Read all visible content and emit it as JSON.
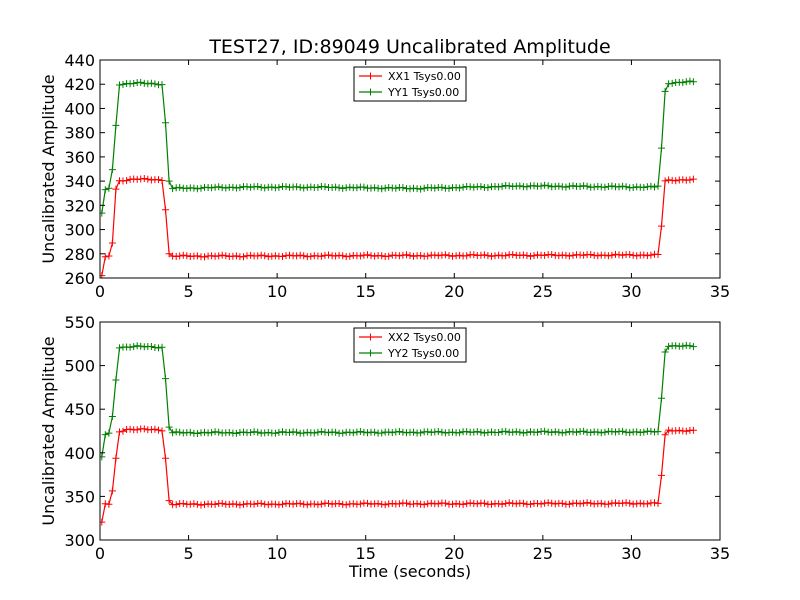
{
  "figure": {
    "title": "TEST27, ID:89049 Uncalibrated Amplitude",
    "xlabel": "Time (seconds)"
  },
  "chart_data": [
    {
      "type": "line",
      "title": "TEST27, ID:89049 Uncalibrated Amplitude",
      "xlabel": "",
      "ylabel": "Uncalibrated Amplitude",
      "xlim": [
        0,
        35
      ],
      "ylim": [
        260,
        440
      ],
      "xticks": [
        "0",
        "5",
        "10",
        "15",
        "20",
        "25",
        "30",
        "35"
      ],
      "yticks": [
        "260",
        "280",
        "300",
        "320",
        "340",
        "360",
        "380",
        "400",
        "420",
        "440"
      ],
      "grid": false,
      "legend_position": "top-center",
      "series": [
        {
          "name": "XX1 Tsys0.00",
          "color": "#ff0000",
          "marker": "+",
          "sampling": {
            "start": 0.1,
            "step": 0.2,
            "end": 33.5
          },
          "profile": [
            [
              0.1,
              262
            ],
            [
              0.3,
              277
            ],
            [
              0.5,
              278
            ],
            [
              0.7,
              289
            ],
            [
              0.9,
              333
            ],
            [
              1.1,
              340
            ],
            [
              1.5,
              341
            ],
            [
              2.0,
              342
            ],
            [
              3.0,
              341
            ],
            [
              3.6,
              341
            ],
            [
              3.7,
              317
            ],
            [
              3.9,
              280
            ],
            [
              4.1,
              278
            ],
            [
              31.3,
              279
            ],
            [
              31.5,
              279
            ],
            [
              31.7,
              303
            ],
            [
              31.9,
              340
            ],
            [
              32.2,
              341
            ],
            [
              33.5,
              341
            ]
          ]
        },
        {
          "name": "YY1 Tsys0.00",
          "color": "#008000",
          "marker": "+",
          "sampling": {
            "start": 0.1,
            "step": 0.2,
            "end": 33.5
          },
          "profile": [
            [
              0.1,
              313
            ],
            [
              0.3,
              333
            ],
            [
              0.5,
              334
            ],
            [
              0.7,
              349
            ],
            [
              0.9,
              386
            ],
            [
              1.1,
              420
            ],
            [
              2.0,
              421
            ],
            [
              3.6,
              420
            ],
            [
              3.7,
              388
            ],
            [
              3.9,
              340
            ],
            [
              4.1,
              334
            ],
            [
              8.0,
              335
            ],
            [
              12.0,
              335
            ],
            [
              18.0,
              334
            ],
            [
              24.0,
              336
            ],
            [
              31.3,
              335
            ],
            [
              31.5,
              336
            ],
            [
              31.7,
              367
            ],
            [
              31.9,
              414
            ],
            [
              32.1,
              421
            ],
            [
              33.5,
              422
            ]
          ]
        }
      ]
    },
    {
      "type": "line",
      "title": "",
      "xlabel": "Time (seconds)",
      "ylabel": "Uncalibrated Amplitude",
      "xlim": [
        0,
        35
      ],
      "ylim": [
        300,
        550
      ],
      "xticks": [
        "0",
        "5",
        "10",
        "15",
        "20",
        "25",
        "30",
        "35"
      ],
      "yticks": [
        "300",
        "350",
        "400",
        "450",
        "500",
        "550"
      ],
      "grid": false,
      "legend_position": "top-center",
      "series": [
        {
          "name": "XX2 Tsys0.00",
          "color": "#ff0000",
          "marker": "+",
          "sampling": {
            "start": 0.1,
            "step": 0.2,
            "end": 33.5
          },
          "profile": [
            [
              0.1,
              320
            ],
            [
              0.3,
              341
            ],
            [
              0.5,
              341
            ],
            [
              0.7,
              356
            ],
            [
              0.9,
              393
            ],
            [
              1.1,
              424
            ],
            [
              1.5,
              427
            ],
            [
              2.0,
              427
            ],
            [
              3.6,
              426
            ],
            [
              3.7,
              394
            ],
            [
              3.9,
              345
            ],
            [
              4.1,
              341
            ],
            [
              31.3,
              342
            ],
            [
              31.5,
              342
            ],
            [
              31.7,
              374
            ],
            [
              31.9,
              420
            ],
            [
              32.1,
              426
            ],
            [
              33.5,
              425
            ]
          ]
        },
        {
          "name": "YY2 Tsys0.00",
          "color": "#008000",
          "marker": "+",
          "sampling": {
            "start": 0.1,
            "step": 0.2,
            "end": 33.5
          },
          "profile": [
            [
              0.1,
              395
            ],
            [
              0.3,
              421
            ],
            [
              0.5,
              422
            ],
            [
              0.7,
              441
            ],
            [
              0.9,
              484
            ],
            [
              1.1,
              521
            ],
            [
              2.0,
              522
            ],
            [
              3.6,
              521
            ],
            [
              3.7,
              485
            ],
            [
              3.9,
              430
            ],
            [
              4.1,
              423
            ],
            [
              31.3,
              424
            ],
            [
              31.5,
              424
            ],
            [
              31.7,
              462
            ],
            [
              31.9,
              516
            ],
            [
              32.1,
              523
            ],
            [
              33.5,
              522
            ]
          ]
        }
      ]
    }
  ]
}
